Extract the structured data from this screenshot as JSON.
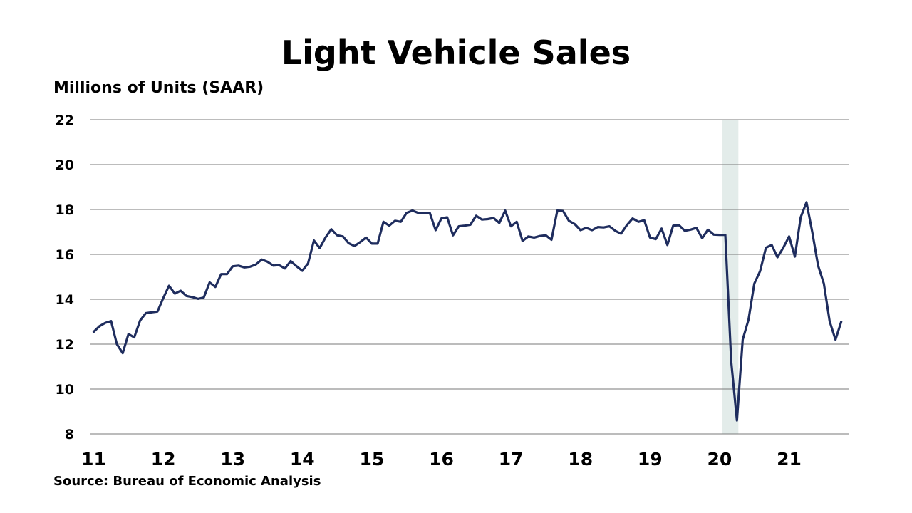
{
  "title": "Light Vehicle Sales",
  "ylabel": "Millions of Units (SAAR)",
  "source": "Source: Bureau of Economic Analysis",
  "colors": {
    "line": "#1f2d5e",
    "grid": "#7a7a7a",
    "shade": "#e3ecea"
  },
  "chart_data": {
    "type": "line",
    "title": "Light Vehicle Sales",
    "ylabel": "Millions of Units (SAAR)",
    "xlabel": "",
    "ylim": [
      8,
      22
    ],
    "yticks": [
      8,
      10,
      12,
      14,
      16,
      18,
      20,
      22
    ],
    "xticks": [
      "11",
      "12",
      "13",
      "14",
      "15",
      "16",
      "17",
      "18",
      "19",
      "20",
      "21"
    ],
    "grid": true,
    "recession_shading": {
      "start": "2020-02",
      "end": "2020-04"
    },
    "series": [
      {
        "values": [
          [
            "2011-01",
            12.55
          ],
          [
            "2011-02",
            12.8
          ],
          [
            "2011-03",
            12.95
          ],
          [
            "2011-04",
            13.03
          ],
          [
            "2011-05",
            12.0
          ],
          [
            "2011-06",
            11.6
          ],
          [
            "2011-07",
            12.45
          ],
          [
            "2011-08",
            12.3
          ],
          [
            "2011-09",
            13.05
          ],
          [
            "2011-10",
            13.38
          ],
          [
            "2011-11",
            13.42
          ],
          [
            "2011-12",
            13.45
          ],
          [
            "2012-01",
            14.05
          ],
          [
            "2012-02",
            14.6
          ],
          [
            "2012-03",
            14.25
          ],
          [
            "2012-04",
            14.38
          ],
          [
            "2012-05",
            14.15
          ],
          [
            "2012-06",
            14.1
          ],
          [
            "2012-07",
            14.02
          ],
          [
            "2012-08",
            14.08
          ],
          [
            "2012-09",
            14.75
          ],
          [
            "2012-10",
            14.55
          ],
          [
            "2012-11",
            15.12
          ],
          [
            "2012-12",
            15.12
          ],
          [
            "2013-01",
            15.47
          ],
          [
            "2013-02",
            15.5
          ],
          [
            "2013-03",
            15.42
          ],
          [
            "2013-04",
            15.45
          ],
          [
            "2013-05",
            15.55
          ],
          [
            "2013-06",
            15.77
          ],
          [
            "2013-07",
            15.67
          ],
          [
            "2013-08",
            15.5
          ],
          [
            "2013-09",
            15.52
          ],
          [
            "2013-10",
            15.37
          ],
          [
            "2013-11",
            15.7
          ],
          [
            "2013-12",
            15.47
          ],
          [
            "2014-01",
            15.27
          ],
          [
            "2014-02",
            15.6
          ],
          [
            "2014-03",
            16.62
          ],
          [
            "2014-04",
            16.28
          ],
          [
            "2014-05",
            16.75
          ],
          [
            "2014-06",
            17.12
          ],
          [
            "2014-07",
            16.85
          ],
          [
            "2014-08",
            16.8
          ],
          [
            "2014-09",
            16.5
          ],
          [
            "2014-10",
            16.37
          ],
          [
            "2014-11",
            16.55
          ],
          [
            "2014-12",
            16.75
          ],
          [
            "2015-01",
            16.48
          ],
          [
            "2015-02",
            16.48
          ],
          [
            "2015-03",
            17.45
          ],
          [
            "2015-04",
            17.28
          ],
          [
            "2015-05",
            17.5
          ],
          [
            "2015-06",
            17.45
          ],
          [
            "2015-07",
            17.85
          ],
          [
            "2015-08",
            17.95
          ],
          [
            "2015-09",
            17.85
          ],
          [
            "2015-10",
            17.85
          ],
          [
            "2015-11",
            17.85
          ],
          [
            "2015-12",
            17.08
          ],
          [
            "2016-01",
            17.6
          ],
          [
            "2016-02",
            17.65
          ],
          [
            "2016-03",
            16.85
          ],
          [
            "2016-04",
            17.25
          ],
          [
            "2016-05",
            17.28
          ],
          [
            "2016-06",
            17.32
          ],
          [
            "2016-07",
            17.72
          ],
          [
            "2016-08",
            17.55
          ],
          [
            "2016-09",
            17.57
          ],
          [
            "2016-10",
            17.62
          ],
          [
            "2016-11",
            17.4
          ],
          [
            "2016-12",
            17.95
          ],
          [
            "2017-01",
            17.25
          ],
          [
            "2017-02",
            17.45
          ],
          [
            "2017-03",
            16.6
          ],
          [
            "2017-04",
            16.8
          ],
          [
            "2017-05",
            16.75
          ],
          [
            "2017-06",
            16.82
          ],
          [
            "2017-07",
            16.85
          ],
          [
            "2017-08",
            16.65
          ],
          [
            "2017-09",
            17.95
          ],
          [
            "2017-10",
            17.93
          ],
          [
            "2017-11",
            17.5
          ],
          [
            "2017-12",
            17.35
          ],
          [
            "2018-01",
            17.08
          ],
          [
            "2018-02",
            17.18
          ],
          [
            "2018-03",
            17.08
          ],
          [
            "2018-04",
            17.22
          ],
          [
            "2018-05",
            17.2
          ],
          [
            "2018-06",
            17.25
          ],
          [
            "2018-07",
            17.05
          ],
          [
            "2018-08",
            16.92
          ],
          [
            "2018-09",
            17.3
          ],
          [
            "2018-10",
            17.6
          ],
          [
            "2018-11",
            17.45
          ],
          [
            "2018-12",
            17.52
          ],
          [
            "2019-01",
            16.75
          ],
          [
            "2019-02",
            16.68
          ],
          [
            "2019-03",
            17.15
          ],
          [
            "2019-04",
            16.42
          ],
          [
            "2019-05",
            17.28
          ],
          [
            "2019-06",
            17.3
          ],
          [
            "2019-07",
            17.05
          ],
          [
            "2019-08",
            17.1
          ],
          [
            "2019-09",
            17.18
          ],
          [
            "2019-10",
            16.72
          ],
          [
            "2019-11",
            17.1
          ],
          [
            "2019-12",
            16.88
          ],
          [
            "2020-01",
            16.87
          ],
          [
            "2020-02",
            16.87
          ],
          [
            "2020-03",
            11.25
          ],
          [
            "2020-04",
            8.6
          ],
          [
            "2020-05",
            12.2
          ],
          [
            "2020-06",
            13.1
          ],
          [
            "2020-07",
            14.7
          ],
          [
            "2020-08",
            15.25
          ],
          [
            "2020-09",
            16.3
          ],
          [
            "2020-10",
            16.42
          ],
          [
            "2020-11",
            15.87
          ],
          [
            "2020-12",
            16.3
          ],
          [
            "2021-01",
            16.8
          ],
          [
            "2021-02",
            15.9
          ],
          [
            "2021-03",
            17.65
          ],
          [
            "2021-04",
            18.32
          ],
          [
            "2021-05",
            17.0
          ],
          [
            "2021-06",
            15.5
          ],
          [
            "2021-07",
            14.7
          ],
          [
            "2021-08",
            13.02
          ],
          [
            "2021-09",
            12.2
          ],
          [
            "2021-10",
            13.0
          ]
        ]
      }
    ]
  }
}
